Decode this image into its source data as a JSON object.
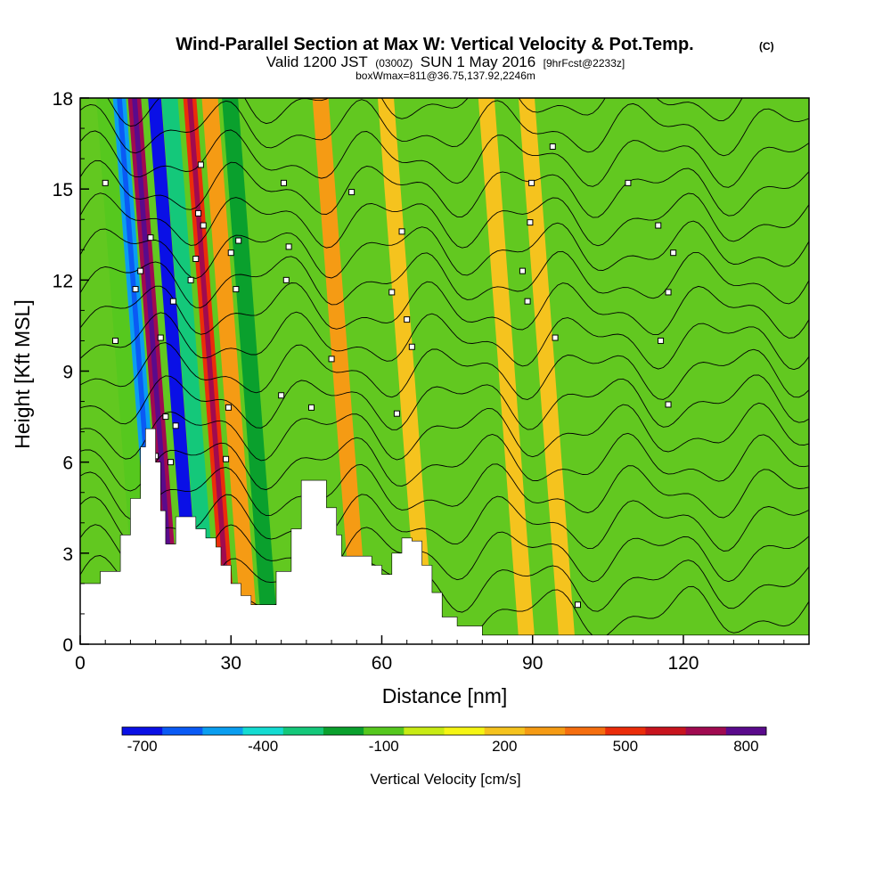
{
  "chart_data": {
    "type": "heatmap",
    "title": "Wind-Parallel Section at Max W: Vertical Velocity & Pot.Temp.",
    "title_mark": "(C)",
    "subtitle_parts": {
      "a": "Valid 1200 JST",
      "b": "(0300Z)",
      "c": "SUN 1 May 2016",
      "d": "[9hrFcst@2233z]"
    },
    "subtitle2": "boxWmax=811@36.75,137.92,2246m",
    "xlabel": "Distance [nm]",
    "ylabel": "Height [Kft MSL]",
    "xlim": [
      0,
      145
    ],
    "ylim": [
      0,
      18
    ],
    "x_ticks": [
      0,
      30,
      60,
      90,
      120
    ],
    "y_ticks": [
      0,
      3,
      6,
      9,
      12,
      15,
      18
    ],
    "colorbar": {
      "label": "Vertical Velocity [cm/s]",
      "tick_labels": [
        "-700",
        "-400",
        "-100",
        "200",
        "500",
        "800"
      ],
      "tick_values": [
        -700,
        -400,
        -100,
        200,
        500,
        800
      ],
      "range": [
        -750,
        850
      ],
      "colors": [
        "#0a10e6",
        "#0a5af5",
        "#0a9ef0",
        "#14dcd2",
        "#14c87a",
        "#0aa02d",
        "#56c81e",
        "#c8eb14",
        "#f5f514",
        "#f5c31e",
        "#f59b14",
        "#f56e0f",
        "#eb2d0a",
        "#c8141e",
        "#a00a50",
        "#5a0a8c"
      ]
    },
    "terrain_kft": [
      [
        0,
        2.0
      ],
      [
        4,
        2.4
      ],
      [
        8,
        3.6
      ],
      [
        10,
        4.8
      ],
      [
        12,
        6.5
      ],
      [
        13,
        7.1
      ],
      [
        14,
        7.1
      ],
      [
        15,
        6.0
      ],
      [
        16,
        4.4
      ],
      [
        17,
        3.3
      ],
      [
        18,
        3.3
      ],
      [
        19,
        4.2
      ],
      [
        21,
        4.2
      ],
      [
        23,
        3.8
      ],
      [
        25,
        3.5
      ],
      [
        27,
        3.2
      ],
      [
        28,
        2.6
      ],
      [
        30,
        2.0
      ],
      [
        32,
        1.6
      ],
      [
        34,
        1.3
      ],
      [
        37,
        1.3
      ],
      [
        39,
        2.4
      ],
      [
        42,
        3.8
      ],
      [
        44,
        5.4
      ],
      [
        47,
        5.4
      ],
      [
        49,
        4.5
      ],
      [
        51,
        3.6
      ],
      [
        52,
        2.9
      ],
      [
        55,
        2.9
      ],
      [
        58,
        2.6
      ],
      [
        60,
        2.3
      ],
      [
        62,
        3.0
      ],
      [
        64,
        3.5
      ],
      [
        66,
        3.4
      ],
      [
        68,
        2.6
      ],
      [
        70,
        1.7
      ],
      [
        72,
        0.9
      ],
      [
        75,
        0.6
      ],
      [
        80,
        0.3
      ],
      [
        90,
        0.3
      ],
      [
        100,
        0.3
      ],
      [
        110,
        0.3
      ],
      [
        120,
        0.3
      ],
      [
        130,
        0.3
      ],
      [
        145,
        0.3
      ]
    ],
    "w_bands_cm_s": [
      {
        "x": 12,
        "w": -150
      },
      {
        "x": 15,
        "w": -520
      },
      {
        "x": 18,
        "w": 700
      },
      {
        "x": 22,
        "w": -720
      },
      {
        "x": 25,
        "w": -300
      },
      {
        "x": 29,
        "w": 500
      },
      {
        "x": 33,
        "w": 300
      },
      {
        "x": 37,
        "w": -250
      },
      {
        "x": 55,
        "w": 250
      },
      {
        "x": 68,
        "w": 180
      },
      {
        "x": 88,
        "w": 170
      },
      {
        "x": 96,
        "w": 180
      }
    ],
    "contour_annotations": [
      {
        "x": 5,
        "y": 15.2
      },
      {
        "x": 7,
        "y": 10.0
      },
      {
        "x": 11,
        "y": 11.7
      },
      {
        "x": 12,
        "y": 12.3
      },
      {
        "x": 14,
        "y": 13.4
      },
      {
        "x": 15,
        "y": 6.2
      },
      {
        "x": 16,
        "y": 10.1
      },
      {
        "x": 17,
        "y": 7.5
      },
      {
        "x": 18,
        "y": 6.0
      },
      {
        "x": 18.5,
        "y": 11.3
      },
      {
        "x": 19,
        "y": 7.2
      },
      {
        "x": 22,
        "y": 12.0
      },
      {
        "x": 23,
        "y": 12.7
      },
      {
        "x": 23.5,
        "y": 14.2
      },
      {
        "x": 24,
        "y": 15.8
      },
      {
        "x": 24.5,
        "y": 13.8
      },
      {
        "x": 29,
        "y": 6.1
      },
      {
        "x": 29.5,
        "y": 7.8
      },
      {
        "x": 30,
        "y": 12.9
      },
      {
        "x": 31,
        "y": 11.7
      },
      {
        "x": 31.5,
        "y": 13.3
      },
      {
        "x": 40,
        "y": 8.2
      },
      {
        "x": 40.5,
        "y": 15.2
      },
      {
        "x": 41,
        "y": 12.0
      },
      {
        "x": 41.5,
        "y": 13.1
      },
      {
        "x": 46,
        "y": 7.8
      },
      {
        "x": 50,
        "y": 9.4
      },
      {
        "x": 54,
        "y": 14.9
      },
      {
        "x": 62,
        "y": 11.6
      },
      {
        "x": 63,
        "y": 7.6
      },
      {
        "x": 64,
        "y": 13.6
      },
      {
        "x": 65,
        "y": 10.7
      },
      {
        "x": 66,
        "y": 9.8
      },
      {
        "x": 88,
        "y": 12.3
      },
      {
        "x": 89,
        "y": 11.3
      },
      {
        "x": 89.5,
        "y": 13.9
      },
      {
        "x": 89.8,
        "y": 15.2
      },
      {
        "x": 94,
        "y": 16.4
      },
      {
        "x": 94.5,
        "y": 10.1
      },
      {
        "x": 99,
        "y": 1.3
      },
      {
        "x": 109,
        "y": 15.2
      },
      {
        "x": 115,
        "y": 13.8
      },
      {
        "x": 115.5,
        "y": 10.0
      },
      {
        "x": 117,
        "y": 11.6
      },
      {
        "x": 117,
        "y": 7.9
      },
      {
        "x": 118,
        "y": 12.9
      }
    ]
  }
}
